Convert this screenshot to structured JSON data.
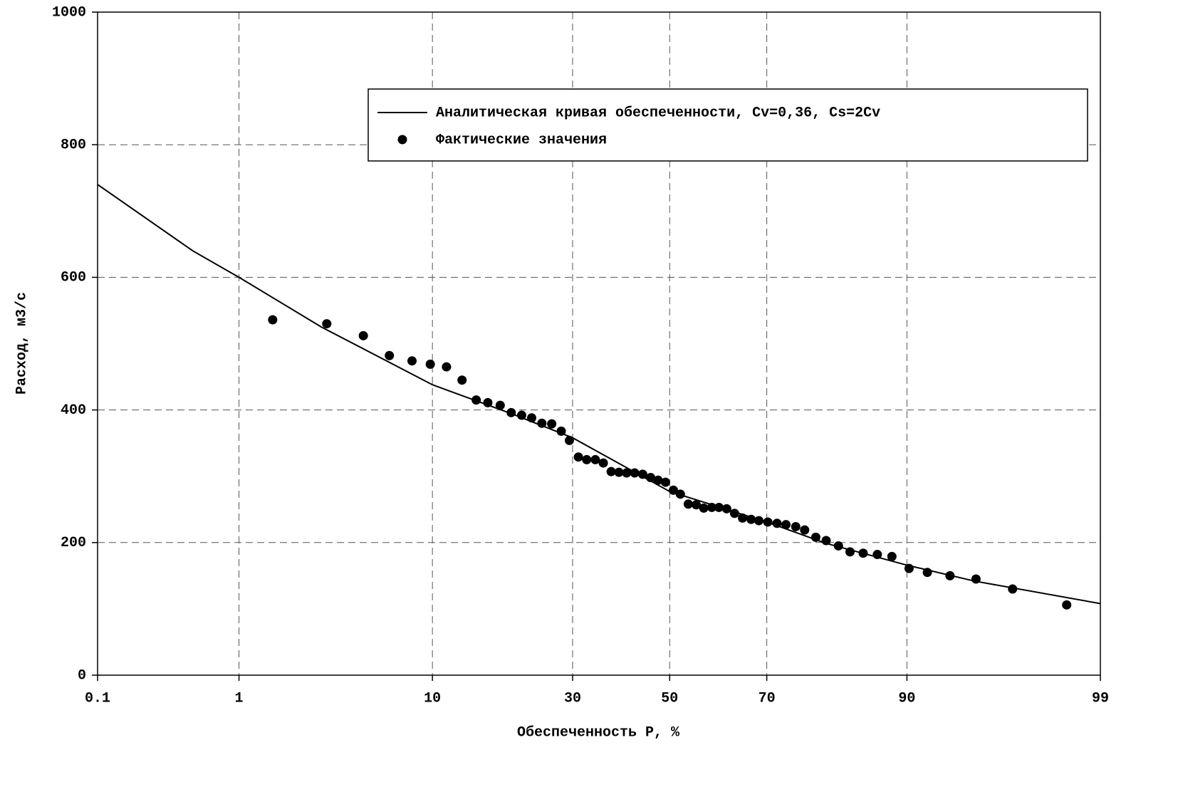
{
  "chart_data": {
    "type": "line-scatter",
    "xlabel": "Обеспеченность P, %",
    "ylabel": "Расход, м3/с",
    "xscale": "probability",
    "xlim": [
      0.1,
      99
    ],
    "xticks": [
      0.1,
      1,
      10,
      30,
      50,
      70,
      90,
      99
    ],
    "ylim": [
      0,
      1000
    ],
    "yticks": [
      0,
      200,
      400,
      600,
      800,
      1000
    ],
    "grid": true,
    "legend": "upper right",
    "series": [
      {
        "name": "Аналитическая кривая обеспеченности, Cv=0,36, Cs=2Cv",
        "kind": "line",
        "color": "#000000",
        "x": [
          0.1,
          0.5,
          1,
          3,
          10,
          20,
          30,
          50,
          70,
          80,
          90,
          95,
          99
        ],
        "values": [
          740,
          640,
          600,
          525,
          438,
          393,
          358,
          277,
          231,
          199,
          166,
          142,
          108
        ]
      },
      {
        "name": "Фактические  значения",
        "kind": "scatter",
        "color": "#000000",
        "x": [
          1.6,
          3.2,
          4.9,
          6.5,
          8.2,
          9.8,
          11.4,
          13.1,
          14.8,
          16.3,
          18.0,
          19.6,
          21.2,
          22.8,
          24.5,
          26.2,
          27.9,
          29.4,
          31.1,
          32.7,
          34.4,
          36.0,
          37.6,
          39.2,
          40.8,
          42.5,
          44.2,
          45.9,
          47.5,
          49.1,
          50.8,
          52.3,
          54.0,
          55.7,
          57.3,
          59.0,
          60.5,
          62.1,
          63.7,
          65.3,
          67.0,
          68.5,
          70.2,
          71.9,
          73.5,
          75.2,
          76.7,
          78.5,
          80.1,
          81.9,
          83.5,
          85.2,
          86.9,
          88.5,
          90.2,
          91.8,
          93.5,
          95.1,
          96.8,
          98.4
        ],
        "values": [
          536,
          530,
          512,
          482,
          474,
          469,
          465,
          445,
          415,
          411,
          407,
          396,
          392,
          388,
          380,
          379,
          368,
          354,
          329,
          325,
          325,
          320,
          307,
          306,
          305,
          305,
          303,
          298,
          294,
          291,
          279,
          273,
          258,
          257,
          252,
          253,
          253,
          251,
          244,
          237,
          235,
          233,
          231,
          229,
          227,
          224,
          219,
          208,
          203,
          195,
          186,
          184,
          182,
          179,
          161,
          155,
          150,
          145,
          130,
          106
        ]
      }
    ]
  }
}
